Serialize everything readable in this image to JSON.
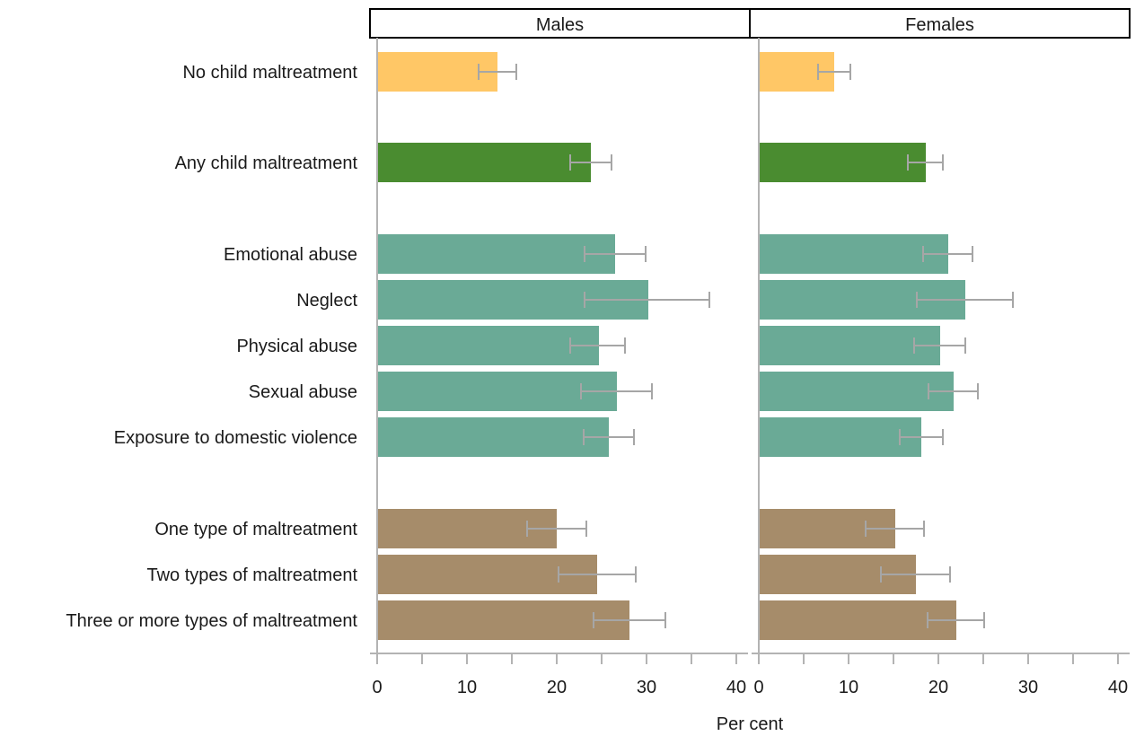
{
  "chart_data": {
    "type": "bar",
    "orientation": "horizontal",
    "xlabel": "Per cent",
    "xlim": [
      0,
      40
    ],
    "x_ticks": [
      0,
      10,
      20,
      30,
      40
    ],
    "x_minor_ticks": [
      5,
      15,
      25,
      35
    ],
    "categories": [
      "No child maltreatment",
      "Any child maltreatment",
      "Emotional abuse",
      "Neglect",
      "Physical abuse",
      "Sexual abuse",
      "Exposure to domestic violence",
      "One type of maltreatment",
      "Two types of maltreatment",
      "Three or more types of maltreatment"
    ],
    "category_groups": [
      0,
      1,
      2,
      2,
      2,
      2,
      2,
      3,
      3,
      3
    ],
    "group_colors": [
      "#ffc766",
      "#4a8c30",
      "#6aaa96",
      "#a68c6a"
    ],
    "error_bar_color": "#a6a6a6",
    "panels": [
      {
        "name": "Males",
        "values": [
          13.4,
          23.8,
          26.5,
          30.2,
          24.7,
          26.7,
          25.8,
          20.0,
          24.5,
          28.1
        ],
        "ci_low": [
          11.3,
          21.5,
          23.1,
          23.1,
          21.5,
          22.7,
          23.0,
          16.7,
          20.2,
          24.1
        ],
        "ci_high": [
          15.5,
          26.1,
          29.9,
          37.0,
          27.6,
          30.6,
          28.6,
          23.3,
          28.8,
          32.1
        ]
      },
      {
        "name": "Females",
        "values": [
          8.4,
          18.6,
          21.1,
          23.0,
          20.2,
          21.7,
          18.1,
          15.2,
          17.5,
          22.0
        ],
        "ci_low": [
          6.6,
          16.6,
          18.3,
          17.6,
          17.3,
          18.9,
          15.7,
          11.9,
          13.6,
          18.8
        ],
        "ci_high": [
          10.2,
          20.5,
          23.8,
          28.3,
          23.0,
          24.4,
          20.5,
          18.4,
          21.3,
          25.1
        ]
      }
    ]
  }
}
